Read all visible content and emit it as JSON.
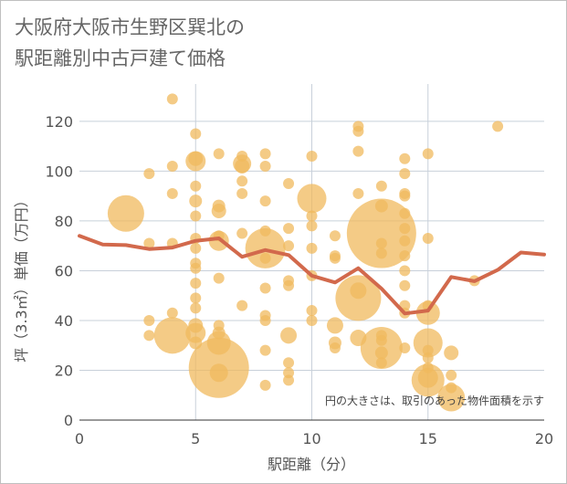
{
  "title_lines": [
    "大阪府大阪市生野区巽北の",
    "駅距離別中古戸建て価格"
  ],
  "chart_data": {
    "type": "scatter",
    "title": "大阪府大阪市生野区巽北の駅距離別中古戸建て価格",
    "xlabel": "駅距離（分）",
    "ylabel": "坪（3.3㎡）単価（万円）",
    "xlim": [
      0,
      20
    ],
    "ylim": [
      0,
      135
    ],
    "xticks": [
      0,
      5,
      10,
      15,
      20
    ],
    "yticks": [
      0,
      20,
      40,
      60,
      80,
      100,
      120
    ],
    "annotation": "円の大きさは、取引のあった物件面積を示す",
    "colors": {
      "bubble": "#f0b95e",
      "line": "#d2694c",
      "grid": "#c8d0da"
    },
    "bubbles": [
      {
        "x": 2,
        "y": 83,
        "s": 40
      },
      {
        "x": 3,
        "y": 99,
        "s": 12
      },
      {
        "x": 3,
        "y": 71,
        "s": 12
      },
      {
        "x": 3,
        "y": 40,
        "s": 12
      },
      {
        "x": 3,
        "y": 34,
        "s": 12
      },
      {
        "x": 4,
        "y": 129,
        "s": 12
      },
      {
        "x": 4,
        "y": 102,
        "s": 12
      },
      {
        "x": 4,
        "y": 91,
        "s": 12
      },
      {
        "x": 4,
        "y": 71,
        "s": 12
      },
      {
        "x": 4,
        "y": 43,
        "s": 12
      },
      {
        "x": 4,
        "y": 34,
        "s": 40
      },
      {
        "x": 5,
        "y": 115,
        "s": 12
      },
      {
        "x": 5,
        "y": 105,
        "s": 16
      },
      {
        "x": 5,
        "y": 104,
        "s": 22
      },
      {
        "x": 5,
        "y": 94,
        "s": 12
      },
      {
        "x": 5,
        "y": 88,
        "s": 14
      },
      {
        "x": 5,
        "y": 82,
        "s": 12
      },
      {
        "x": 5,
        "y": 73,
        "s": 12
      },
      {
        "x": 5,
        "y": 69,
        "s": 12
      },
      {
        "x": 5,
        "y": 63,
        "s": 12
      },
      {
        "x": 5,
        "y": 61,
        "s": 12
      },
      {
        "x": 5,
        "y": 55,
        "s": 12
      },
      {
        "x": 5,
        "y": 49,
        "s": 12
      },
      {
        "x": 5,
        "y": 45,
        "s": 12
      },
      {
        "x": 5,
        "y": 38,
        "s": 16
      },
      {
        "x": 5,
        "y": 35,
        "s": 22
      },
      {
        "x": 5,
        "y": 31,
        "s": 14
      },
      {
        "x": 6,
        "y": 107,
        "s": 12
      },
      {
        "x": 6,
        "y": 86,
        "s": 14
      },
      {
        "x": 6,
        "y": 84,
        "s": 16
      },
      {
        "x": 6,
        "y": 74,
        "s": 12
      },
      {
        "x": 6,
        "y": 72,
        "s": 22
      },
      {
        "x": 6,
        "y": 57,
        "s": 12
      },
      {
        "x": 6,
        "y": 38,
        "s": 12
      },
      {
        "x": 6,
        "y": 35,
        "s": 14
      },
      {
        "x": 6,
        "y": 31,
        "s": 26
      },
      {
        "x": 6,
        "y": 21,
        "s": 66
      },
      {
        "x": 6,
        "y": 19,
        "s": 20
      },
      {
        "x": 7,
        "y": 106,
        "s": 12
      },
      {
        "x": 7,
        "y": 103,
        "s": 20
      },
      {
        "x": 7,
        "y": 102,
        "s": 16
      },
      {
        "x": 7,
        "y": 96,
        "s": 12
      },
      {
        "x": 7,
        "y": 91,
        "s": 12
      },
      {
        "x": 7,
        "y": 75,
        "s": 12
      },
      {
        "x": 7,
        "y": 46,
        "s": 12
      },
      {
        "x": 8,
        "y": 107,
        "s": 12
      },
      {
        "x": 8,
        "y": 102,
        "s": 12
      },
      {
        "x": 8,
        "y": 88,
        "s": 12
      },
      {
        "x": 8,
        "y": 76,
        "s": 12
      },
      {
        "x": 8,
        "y": 69,
        "s": 44
      },
      {
        "x": 8,
        "y": 65,
        "s": 12
      },
      {
        "x": 8,
        "y": 53,
        "s": 12
      },
      {
        "x": 8,
        "y": 42,
        "s": 12
      },
      {
        "x": 8,
        "y": 40,
        "s": 12
      },
      {
        "x": 8,
        "y": 28,
        "s": 12
      },
      {
        "x": 8,
        "y": 14,
        "s": 12
      },
      {
        "x": 9,
        "y": 95,
        "s": 12
      },
      {
        "x": 9,
        "y": 77,
        "s": 12
      },
      {
        "x": 9,
        "y": 70,
        "s": 12
      },
      {
        "x": 9,
        "y": 56,
        "s": 12
      },
      {
        "x": 9,
        "y": 54,
        "s": 12
      },
      {
        "x": 9,
        "y": 34,
        "s": 18
      },
      {
        "x": 9,
        "y": 23,
        "s": 12
      },
      {
        "x": 9,
        "y": 19,
        "s": 12
      },
      {
        "x": 9,
        "y": 16,
        "s": 12
      },
      {
        "x": 10,
        "y": 106,
        "s": 12
      },
      {
        "x": 10,
        "y": 89,
        "s": 32
      },
      {
        "x": 10,
        "y": 82,
        "s": 12
      },
      {
        "x": 10,
        "y": 78,
        "s": 12
      },
      {
        "x": 10,
        "y": 69,
        "s": 12
      },
      {
        "x": 10,
        "y": 58,
        "s": 12
      },
      {
        "x": 10,
        "y": 44,
        "s": 12
      },
      {
        "x": 10,
        "y": 40,
        "s": 12
      },
      {
        "x": 11,
        "y": 74,
        "s": 12
      },
      {
        "x": 11,
        "y": 66,
        "s": 12
      },
      {
        "x": 11,
        "y": 65,
        "s": 12
      },
      {
        "x": 11,
        "y": 38,
        "s": 18
      },
      {
        "x": 11,
        "y": 31,
        "s": 14
      },
      {
        "x": 11,
        "y": 29,
        "s": 12
      },
      {
        "x": 12,
        "y": 118,
        "s": 12
      },
      {
        "x": 12,
        "y": 116,
        "s": 12
      },
      {
        "x": 12,
        "y": 108,
        "s": 12
      },
      {
        "x": 12,
        "y": 91,
        "s": 12
      },
      {
        "x": 12,
        "y": 52,
        "s": 18
      },
      {
        "x": 12,
        "y": 49,
        "s": 50
      },
      {
        "x": 12,
        "y": 33,
        "s": 18
      },
      {
        "x": 13,
        "y": 94,
        "s": 12
      },
      {
        "x": 13,
        "y": 86,
        "s": 14
      },
      {
        "x": 13,
        "y": 75,
        "s": 76
      },
      {
        "x": 13,
        "y": 71,
        "s": 12
      },
      {
        "x": 13,
        "y": 67,
        "s": 12
      },
      {
        "x": 13,
        "y": 34,
        "s": 12
      },
      {
        "x": 13,
        "y": 32,
        "s": 12
      },
      {
        "x": 13,
        "y": 29,
        "s": 46
      },
      {
        "x": 13,
        "y": 27,
        "s": 14
      },
      {
        "x": 13,
        "y": 23,
        "s": 12
      },
      {
        "x": 14,
        "y": 105,
        "s": 12
      },
      {
        "x": 14,
        "y": 99,
        "s": 12
      },
      {
        "x": 14,
        "y": 91,
        "s": 12
      },
      {
        "x": 14,
        "y": 90,
        "s": 12
      },
      {
        "x": 14,
        "y": 83,
        "s": 12
      },
      {
        "x": 14,
        "y": 77,
        "s": 12
      },
      {
        "x": 14,
        "y": 72,
        "s": 12
      },
      {
        "x": 14,
        "y": 66,
        "s": 12
      },
      {
        "x": 14,
        "y": 60,
        "s": 12
      },
      {
        "x": 14,
        "y": 54,
        "s": 12
      },
      {
        "x": 14,
        "y": 46,
        "s": 12
      },
      {
        "x": 14,
        "y": 43,
        "s": 12
      },
      {
        "x": 14,
        "y": 29,
        "s": 12
      },
      {
        "x": 15,
        "y": 107,
        "s": 12
      },
      {
        "x": 15,
        "y": 73,
        "s": 12
      },
      {
        "x": 15,
        "y": 46,
        "s": 12
      },
      {
        "x": 15,
        "y": 43,
        "s": 26
      },
      {
        "x": 15,
        "y": 31,
        "s": 32
      },
      {
        "x": 15,
        "y": 28,
        "s": 12
      },
      {
        "x": 15,
        "y": 25,
        "s": 12
      },
      {
        "x": 15,
        "y": 21,
        "s": 12
      },
      {
        "x": 15,
        "y": 17,
        "s": 22
      },
      {
        "x": 15,
        "y": 16,
        "s": 36
      },
      {
        "x": 16,
        "y": 27,
        "s": 16
      },
      {
        "x": 16,
        "y": 18,
        "s": 12
      },
      {
        "x": 16,
        "y": 13,
        "s": 12
      },
      {
        "x": 16,
        "y": 9,
        "s": 30
      },
      {
        "x": 17,
        "y": 56,
        "s": 12
      },
      {
        "x": 18,
        "y": 118,
        "s": 12
      }
    ],
    "line": {
      "x": [
        0,
        1,
        2,
        3,
        4,
        5,
        6,
        7,
        8,
        9,
        10,
        11,
        12,
        13,
        14,
        15,
        16,
        17,
        18,
        19,
        20
      ],
      "y": [
        74,
        70.5,
        70.3,
        68.7,
        69.3,
        72,
        73,
        65.6,
        68.3,
        66.3,
        58,
        55.3,
        61,
        52.8,
        42.8,
        44,
        57.5,
        55.8,
        60.3,
        67.3,
        66.5
      ]
    }
  }
}
